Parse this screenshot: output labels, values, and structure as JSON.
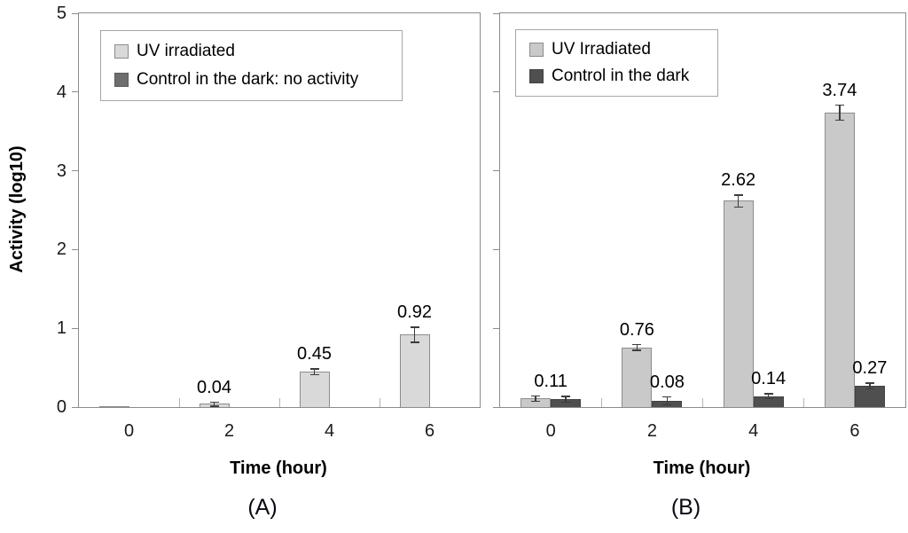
{
  "figure": {
    "shared_y_axis_title": "Activity (log10)",
    "background": "#ffffff",
    "axis_color": "#8c8c8c",
    "error_bar_color": "#3c3c3c"
  },
  "chart_data": [
    {
      "type": "bar",
      "title": "(A)",
      "xlabel": "Time (hour)",
      "ylabel": "Activity (log10)",
      "categories": [
        0,
        2,
        4,
        6
      ],
      "ylim": [
        0,
        5
      ],
      "yticks": [
        0,
        1,
        2,
        3,
        4,
        5
      ],
      "grid": false,
      "legend_position": "top-left",
      "series": [
        {
          "name": "UV irradiated",
          "color": "#d9d9d9",
          "border": "#8c8c8c",
          "values": [
            0.01,
            0.04,
            0.45,
            0.92
          ],
          "errors": [
            0,
            0.02,
            0.03,
            0.09
          ],
          "labels": [
            "",
            "0.04",
            "0.45",
            "0.92"
          ]
        },
        {
          "name": "Control in the dark: no activity",
          "color": "#6e6e6e",
          "border": "#5a5a5a",
          "values": [
            0,
            0,
            0,
            0
          ],
          "errors": [
            0,
            0,
            0,
            0
          ],
          "labels": [
            "",
            "",
            "",
            ""
          ]
        }
      ]
    },
    {
      "type": "bar",
      "title": "(B)",
      "xlabel": "Time (hour)",
      "ylabel": "",
      "categories": [
        0,
        2,
        4,
        6
      ],
      "ylim": [
        0,
        5
      ],
      "yticks": [
        0,
        1,
        2,
        3,
        4,
        5
      ],
      "grid": false,
      "legend_position": "top-left",
      "series": [
        {
          "name": "UV Irradiated",
          "color": "#c9c9c9",
          "border": "#8c8c8c",
          "values": [
            0.11,
            0.76,
            2.62,
            3.74
          ],
          "errors": [
            0.03,
            0.03,
            0.07,
            0.09
          ],
          "labels": [
            "0.11",
            "0.76",
            "2.62",
            "3.74"
          ],
          "label_anchor": [
            "group",
            "bar",
            "bar",
            "bar"
          ]
        },
        {
          "name": "Control in the dark",
          "color": "#4f4f4f",
          "border": "#424242",
          "values": [
            0.1,
            0.08,
            0.14,
            0.27
          ],
          "errors": [
            0.03,
            0.045,
            0.025,
            0.03
          ],
          "labels": [
            "",
            "0.08",
            "0.14",
            "0.27"
          ]
        }
      ]
    }
  ]
}
